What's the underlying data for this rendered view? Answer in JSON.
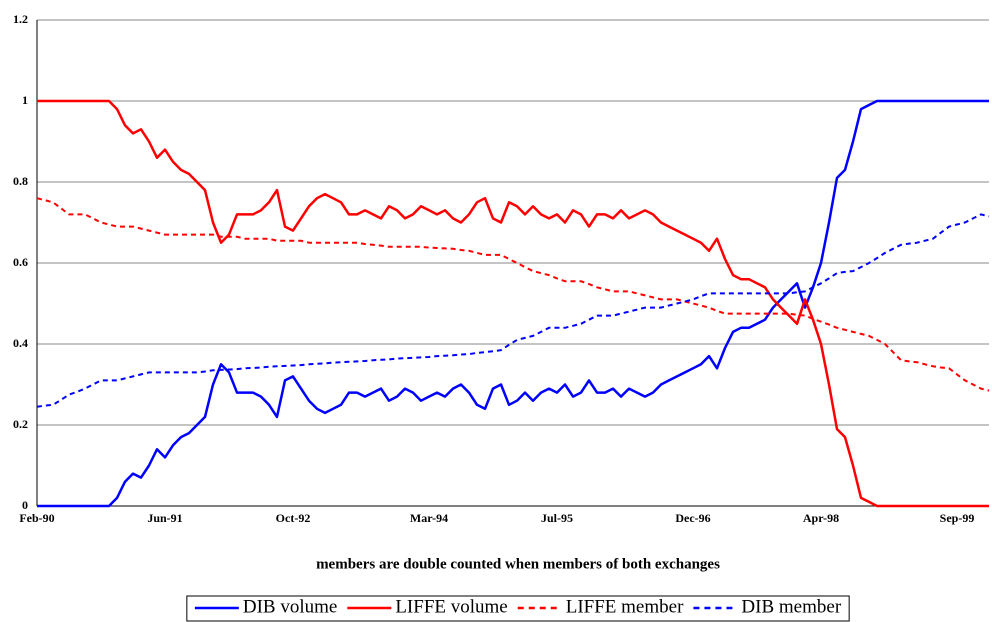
{
  "chart_data": {
    "type": "line",
    "x_label": "members are double counted when members of both exchanges",
    "categories": [
      "Feb-90",
      null,
      null,
      null,
      null,
      null,
      null,
      null,
      null,
      null,
      null,
      null,
      null,
      null,
      null,
      null,
      "Jun-91",
      null,
      null,
      null,
      null,
      null,
      null,
      null,
      null,
      null,
      null,
      null,
      null,
      null,
      null,
      null,
      "Oct-92",
      null,
      null,
      null,
      null,
      null,
      null,
      null,
      null,
      null,
      null,
      null,
      null,
      null,
      null,
      null,
      null,
      "Mar-94",
      null,
      null,
      null,
      null,
      null,
      null,
      null,
      null,
      null,
      null,
      null,
      null,
      null,
      null,
      null,
      "Jul-95",
      null,
      null,
      null,
      null,
      null,
      null,
      null,
      null,
      null,
      null,
      null,
      null,
      null,
      null,
      null,
      null,
      "Dec-96",
      null,
      null,
      null,
      null,
      null,
      null,
      null,
      null,
      null,
      null,
      null,
      null,
      null,
      null,
      null,
      "Apr-98",
      null,
      null,
      null,
      null,
      null,
      null,
      null,
      null,
      null,
      null,
      null,
      null,
      null,
      null,
      null,
      null,
      "Sep-99",
      null,
      null,
      null,
      null
    ],
    "ylim": [
      0,
      1.2
    ],
    "yticks": [
      0,
      0.2,
      0.4,
      0.6,
      0.8,
      1,
      1.2
    ],
    "grid": true,
    "legend": "bottom",
    "series": [
      {
        "name": "DIB volume",
        "color": "#0000ff",
        "line_style": "solid",
        "values": [
          0,
          0,
          0,
          0,
          0,
          0,
          0,
          0,
          0,
          0,
          0.02,
          0.06,
          0.08,
          0.07,
          0.1,
          0.14,
          0.12,
          0.15,
          0.17,
          0.18,
          0.2,
          0.22,
          0.3,
          0.35,
          0.33,
          0.28,
          0.28,
          0.28,
          0.27,
          0.25,
          0.22,
          0.31,
          0.32,
          0.29,
          0.26,
          0.24,
          0.23,
          0.24,
          0.25,
          0.28,
          0.28,
          0.27,
          0.28,
          0.29,
          0.26,
          0.27,
          0.29,
          0.28,
          0.26,
          0.27,
          0.28,
          0.27,
          0.29,
          0.3,
          0.28,
          0.25,
          0.24,
          0.29,
          0.3,
          0.25,
          0.26,
          0.28,
          0.26,
          0.28,
          0.29,
          0.28,
          0.3,
          0.27,
          0.28,
          0.31,
          0.28,
          0.28,
          0.29,
          0.27,
          0.29,
          0.28,
          0.27,
          0.28,
          0.3,
          0.31,
          0.32,
          0.33,
          0.34,
          0.35,
          0.37,
          0.34,
          0.39,
          0.43,
          0.44,
          0.44,
          0.45,
          0.46,
          0.49,
          0.51,
          0.53,
          0.55,
          0.49,
          0.54,
          0.6,
          0.7,
          0.81,
          0.83,
          0.9,
          0.98,
          0.99,
          1,
          1,
          1,
          1,
          1,
          1,
          1,
          1,
          1,
          1,
          1,
          1,
          1,
          1,
          1
        ]
      },
      {
        "name": "LIFFE volume",
        "color": "#ff0000",
        "line_style": "solid",
        "values": [
          1,
          1,
          1,
          1,
          1,
          1,
          1,
          1,
          1,
          1,
          0.98,
          0.94,
          0.92,
          0.93,
          0.9,
          0.86,
          0.88,
          0.85,
          0.83,
          0.82,
          0.8,
          0.78,
          0.7,
          0.65,
          0.67,
          0.72,
          0.72,
          0.72,
          0.73,
          0.75,
          0.78,
          0.69,
          0.68,
          0.71,
          0.74,
          0.76,
          0.77,
          0.76,
          0.75,
          0.72,
          0.72,
          0.73,
          0.72,
          0.71,
          0.74,
          0.73,
          0.71,
          0.72,
          0.74,
          0.73,
          0.72,
          0.73,
          0.71,
          0.7,
          0.72,
          0.75,
          0.76,
          0.71,
          0.7,
          0.75,
          0.74,
          0.72,
          0.74,
          0.72,
          0.71,
          0.72,
          0.7,
          0.73,
          0.72,
          0.69,
          0.72,
          0.72,
          0.71,
          0.73,
          0.71,
          0.72,
          0.73,
          0.72,
          0.7,
          0.69,
          0.68,
          0.67,
          0.66,
          0.65,
          0.63,
          0.66,
          0.61,
          0.57,
          0.56,
          0.56,
          0.55,
          0.54,
          0.51,
          0.49,
          0.47,
          0.45,
          0.51,
          0.46,
          0.4,
          0.3,
          0.19,
          0.17,
          0.1,
          0.02,
          0.01,
          0,
          0,
          0,
          0,
          0,
          0,
          0,
          0,
          0,
          0,
          0,
          0,
          0,
          0,
          0
        ]
      },
      {
        "name": "LIFFE member",
        "color": "#ff0000",
        "line_style": "dashed",
        "values": [
          0.76,
          0.755,
          0.75,
          0.735,
          0.72,
          0.72,
          0.72,
          0.71,
          0.7,
          0.695,
          0.69,
          0.69,
          0.69,
          0.685,
          0.68,
          0.675,
          0.67,
          0.67,
          0.67,
          0.67,
          0.67,
          0.67,
          0.67,
          0.665,
          0.665,
          0.665,
          0.66,
          0.66,
          0.66,
          0.66,
          0.655,
          0.655,
          0.655,
          0.655,
          0.65,
          0.65,
          0.65,
          0.65,
          0.65,
          0.65,
          0.65,
          0.647,
          0.645,
          0.643,
          0.64,
          0.64,
          0.64,
          0.64,
          0.64,
          0.638,
          0.637,
          0.636,
          0.635,
          0.632,
          0.63,
          0.625,
          0.62,
          0.62,
          0.62,
          0.61,
          0.6,
          0.59,
          0.58,
          0.575,
          0.57,
          0.562,
          0.555,
          0.555,
          0.555,
          0.548,
          0.54,
          0.535,
          0.53,
          0.53,
          0.53,
          0.525,
          0.52,
          0.515,
          0.51,
          0.51,
          0.51,
          0.505,
          0.5,
          0.495,
          0.49,
          0.482,
          0.475,
          0.475,
          0.475,
          0.475,
          0.475,
          0.475,
          0.475,
          0.475,
          0.475,
          0.472,
          0.47,
          0.462,
          0.455,
          0.448,
          0.44,
          0.435,
          0.43,
          0.425,
          0.42,
          0.41,
          0.4,
          0.38,
          0.36,
          0.357,
          0.355,
          0.35,
          0.345,
          0.342,
          0.34,
          0.325,
          0.31,
          0.3,
          0.29,
          0.285
        ]
      },
      {
        "name": "DIB member",
        "color": "#0000ff",
        "line_style": "dashed",
        "values": [
          0.245,
          0.248,
          0.25,
          0.262,
          0.275,
          0.282,
          0.29,
          0.3,
          0.31,
          0.31,
          0.31,
          0.315,
          0.32,
          0.325,
          0.33,
          0.33,
          0.33,
          0.33,
          0.33,
          0.33,
          0.33,
          0.332,
          0.335,
          0.336,
          0.337,
          0.338,
          0.34,
          0.341,
          0.342,
          0.344,
          0.345,
          0.346,
          0.347,
          0.348,
          0.35,
          0.351,
          0.352,
          0.354,
          0.355,
          0.356,
          0.357,
          0.358,
          0.36,
          0.361,
          0.362,
          0.364,
          0.365,
          0.366,
          0.367,
          0.368,
          0.37,
          0.371,
          0.372,
          0.374,
          0.375,
          0.378,
          0.38,
          0.382,
          0.385,
          0.398,
          0.41,
          0.415,
          0.42,
          0.43,
          0.44,
          0.44,
          0.44,
          0.445,
          0.45,
          0.46,
          0.47,
          0.47,
          0.47,
          0.475,
          0.48,
          0.485,
          0.49,
          0.49,
          0.49,
          0.495,
          0.5,
          0.505,
          0.51,
          0.518,
          0.525,
          0.525,
          0.525,
          0.525,
          0.525,
          0.525,
          0.525,
          0.525,
          0.525,
          0.525,
          0.525,
          0.528,
          0.53,
          0.54,
          0.55,
          0.562,
          0.575,
          0.578,
          0.58,
          0.59,
          0.6,
          0.612,
          0.625,
          0.635,
          0.645,
          0.648,
          0.65,
          0.655,
          0.66,
          0.675,
          0.69,
          0.695,
          0.7,
          0.71,
          0.72,
          0.715
        ]
      }
    ]
  }
}
